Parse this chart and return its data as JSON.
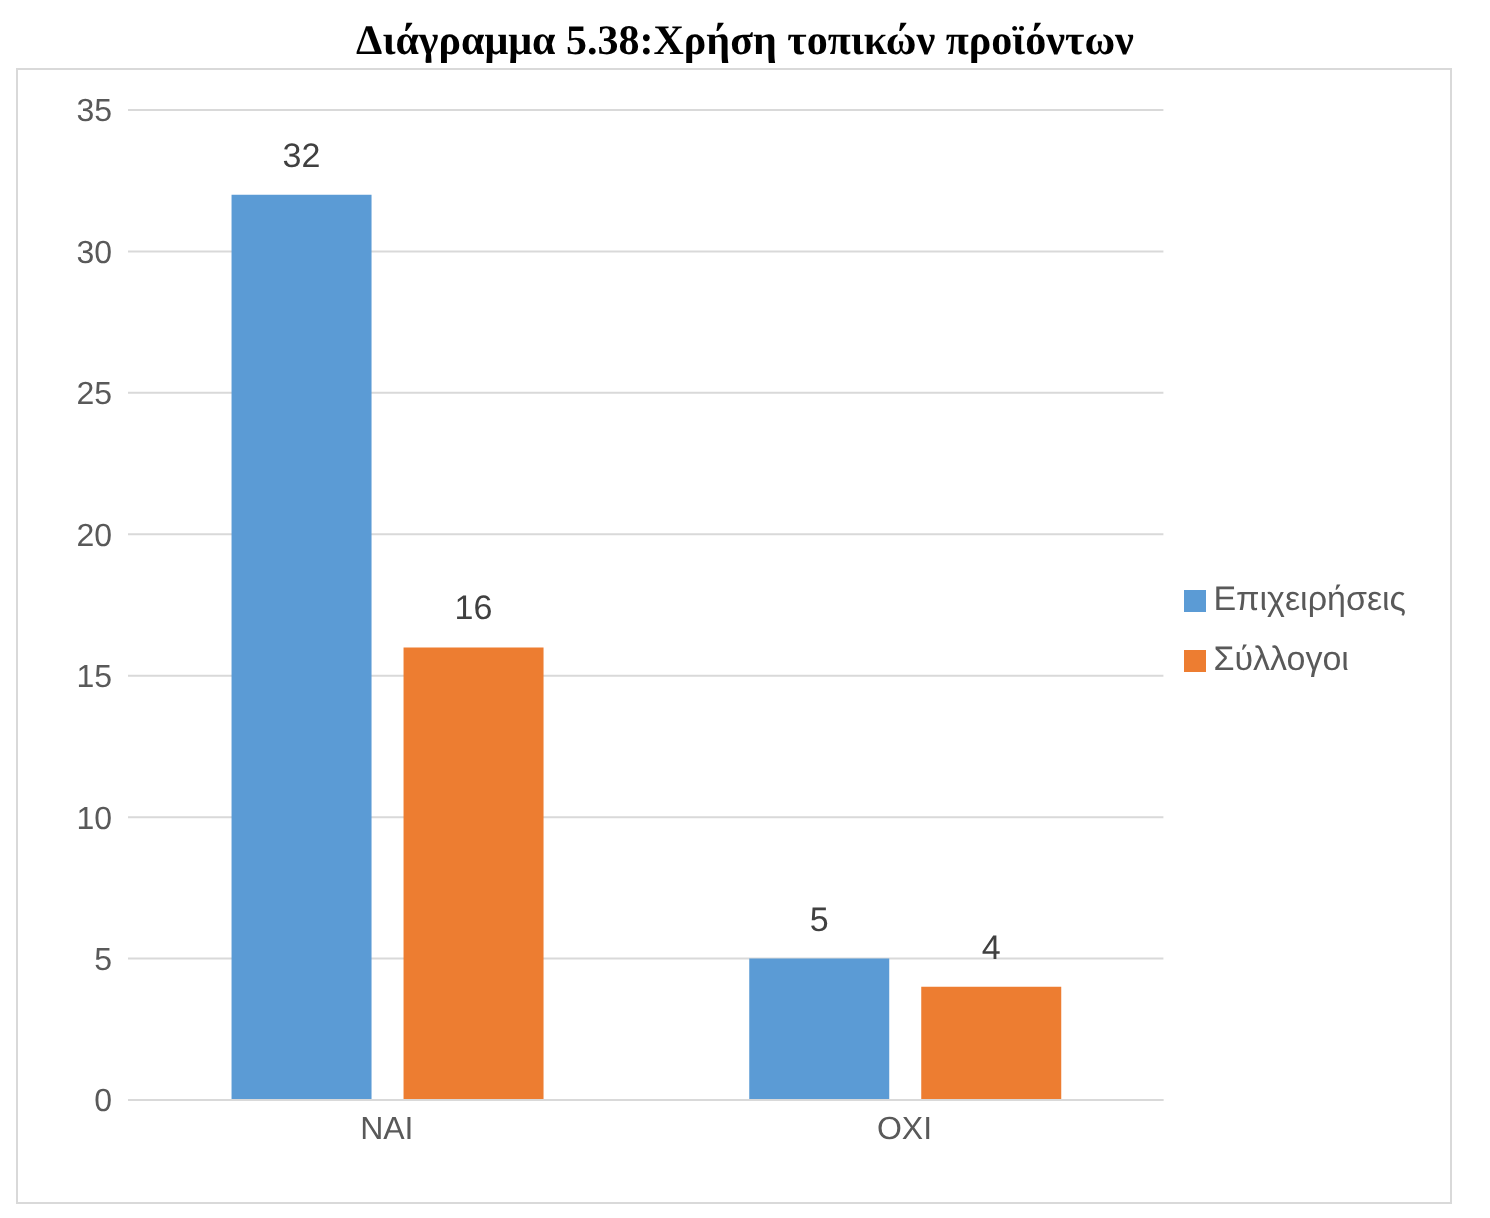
{
  "chart_data": {
    "type": "bar",
    "title": "Διάγραμμα 5.38:Χρήση τοπικών προϊόντων",
    "categories": [
      "NAI",
      "OXI"
    ],
    "series": [
      {
        "name": "Επιχειρήσεις",
        "color": "#5b9bd5",
        "values": [
          32,
          5
        ]
      },
      {
        "name": "Σύλλογοι",
        "color": "#ed7d31",
        "values": [
          16,
          4
        ]
      }
    ],
    "ylim": [
      0,
      35
    ],
    "yticks": [
      0,
      5,
      10,
      15,
      20,
      25,
      30,
      35
    ],
    "grid": "y",
    "legend": "right",
    "data_labels": true
  }
}
